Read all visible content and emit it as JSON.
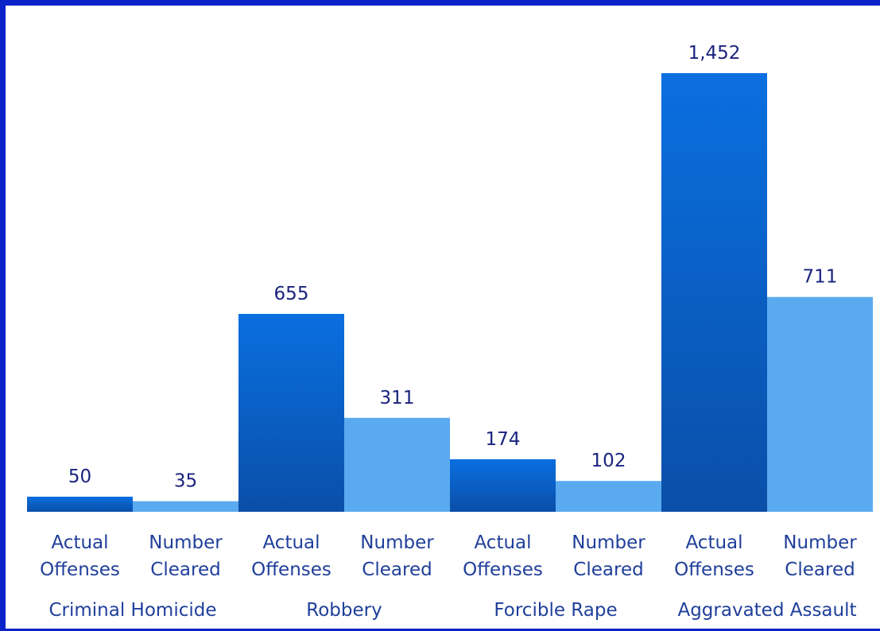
{
  "chart_data": {
    "type": "bar",
    "groups": [
      "Criminal Homicide",
      "Robbery",
      "Forcible Rape",
      "Aggravated Assault"
    ],
    "series": [
      {
        "name": "Actual Offenses",
        "values": [
          50,
          655,
          174,
          1452
        ]
      },
      {
        "name": "Number Cleared",
        "values": [
          35,
          311,
          102,
          711
        ]
      }
    ],
    "bar_labels": [
      [
        "Actual",
        "Offenses"
      ],
      [
        "Number",
        "Cleared"
      ]
    ],
    "value_labels": [
      [
        "50",
        "655",
        "174",
        "1,452"
      ],
      [
        "35",
        "311",
        "102",
        "711"
      ]
    ],
    "ylim": [
      0,
      1452
    ],
    "grid": false,
    "colors": {
      "actual_top": "#0a6fe0",
      "actual_bottom": "#0a4fa8",
      "cleared": "#5aaaf0",
      "frame": "#0a22c8",
      "text": "#1a237e"
    }
  }
}
